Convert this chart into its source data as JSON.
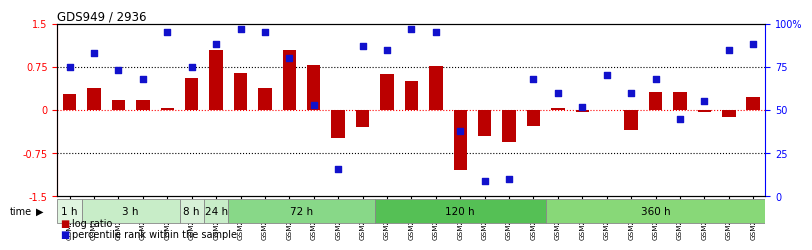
{
  "title": "GDS949 / 2936",
  "samples": [
    "GSM22838",
    "GSM22839",
    "GSM22840",
    "GSM22841",
    "GSM22842",
    "GSM22843",
    "GSM22844",
    "GSM22845",
    "GSM22846",
    "GSM22847",
    "GSM22848",
    "GSM22849",
    "GSM22850",
    "GSM22851",
    "GSM22852",
    "GSM22853",
    "GSM22854",
    "GSM22855",
    "GSM22856",
    "GSM22857",
    "GSM22858",
    "GSM22859",
    "GSM22860",
    "GSM22861",
    "GSM22862",
    "GSM22863",
    "GSM22864",
    "GSM22865",
    "GSM22866"
  ],
  "log_ratio": [
    0.28,
    0.38,
    0.18,
    0.17,
    0.03,
    0.55,
    1.05,
    0.65,
    0.38,
    1.05,
    0.78,
    -0.48,
    -0.3,
    0.62,
    0.5,
    0.77,
    -1.05,
    -0.45,
    -0.55,
    -0.28,
    0.04,
    -0.04,
    0.0,
    -0.35,
    0.32,
    0.32,
    -0.04,
    -0.12,
    0.22
  ],
  "percentile": [
    75,
    83,
    73,
    68,
    95,
    75,
    88,
    97,
    95,
    80,
    53,
    16,
    87,
    85,
    97,
    95,
    38,
    9,
    10,
    68,
    60,
    52,
    70,
    60,
    68,
    45,
    55,
    85,
    88
  ],
  "time_groups": [
    {
      "label": "1 h",
      "start": 0,
      "end": 1,
      "color": "#e0f5e0"
    },
    {
      "label": "3 h",
      "start": 1,
      "end": 5,
      "color": "#c8edc8"
    },
    {
      "label": "8 h",
      "start": 5,
      "end": 6,
      "color": "#d8f0d8"
    },
    {
      "label": "24 h",
      "start": 6,
      "end": 7,
      "color": "#c8edc8"
    },
    {
      "label": "72 h",
      "start": 7,
      "end": 13,
      "color": "#88d888"
    },
    {
      "label": "120 h",
      "start": 13,
      "end": 20,
      "color": "#55c055"
    },
    {
      "label": "360 h",
      "start": 20,
      "end": 29,
      "color": "#88d878"
    }
  ],
  "bar_color": "#bb0000",
  "dot_color": "#1111cc",
  "ylim_left": [
    -1.5,
    1.5
  ],
  "ylim_right": [
    0,
    100
  ],
  "yticks_left": [
    -1.5,
    -0.75,
    0.0,
    0.75,
    1.5
  ],
  "yticks_right": [
    0,
    25,
    50,
    75,
    100
  ],
  "ytick_labels_right": [
    "0",
    "25",
    "50",
    "75",
    "100%"
  ],
  "background_color": "#ffffff",
  "label_log_ratio": "log ratio",
  "label_percentile": "percentile rank within the sample"
}
